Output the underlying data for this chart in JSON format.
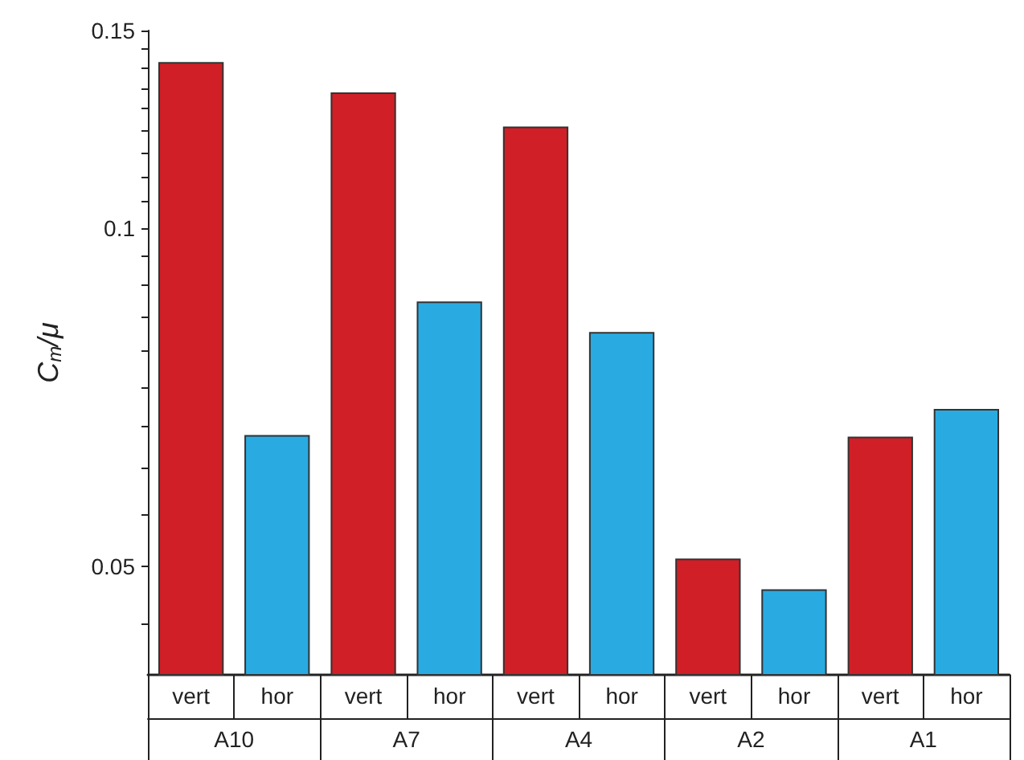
{
  "chart_data": {
    "type": "bar",
    "ylabel": "C$_{m}$/μ",
    "log": true,
    "categories": [
      "A10",
      "A7",
      "A4",
      "A2",
      "A1"
    ],
    "series": [
      {
        "name": "vert",
        "color": "#d01f26",
        "values": [
          0.1404,
          0.1319,
          0.123,
          0.0507,
          0.0651
        ]
      },
      {
        "name": "hor",
        "color": "#29abe2",
        "values": [
          0.0653,
          0.0859,
          0.0807,
          0.0476,
          0.0689
        ]
      }
    ],
    "ylim": [
      0.04,
      0.15
    ],
    "yticks": [
      {
        "value": 0.0444,
        "label": null
      },
      0.05,
      {
        "value": 0.0556,
        "label": null
      },
      {
        "value": 0.0611,
        "label": null
      },
      {
        "value": 0.0667,
        "label": null
      },
      {
        "value": 0.0722,
        "label": null
      },
      {
        "value": 0.0778,
        "label": null
      },
      {
        "value": 0.0833,
        "label": null
      },
      {
        "value": 0.0889,
        "label": null
      },
      {
        "value": 0.0944,
        "label": null
      },
      0.1,
      {
        "value": 0.1056,
        "label": null
      },
      {
        "value": 0.1111,
        "label": null
      },
      {
        "value": 0.1167,
        "label": null
      },
      {
        "value": 0.1222,
        "label": null
      },
      {
        "value": 0.1278,
        "label": null
      },
      {
        "value": 0.1333,
        "label": null
      },
      {
        "value": 0.1389,
        "label": null
      },
      {
        "value": 0.1444,
        "label": null
      },
      0.15
    ],
    "grid": false
  }
}
